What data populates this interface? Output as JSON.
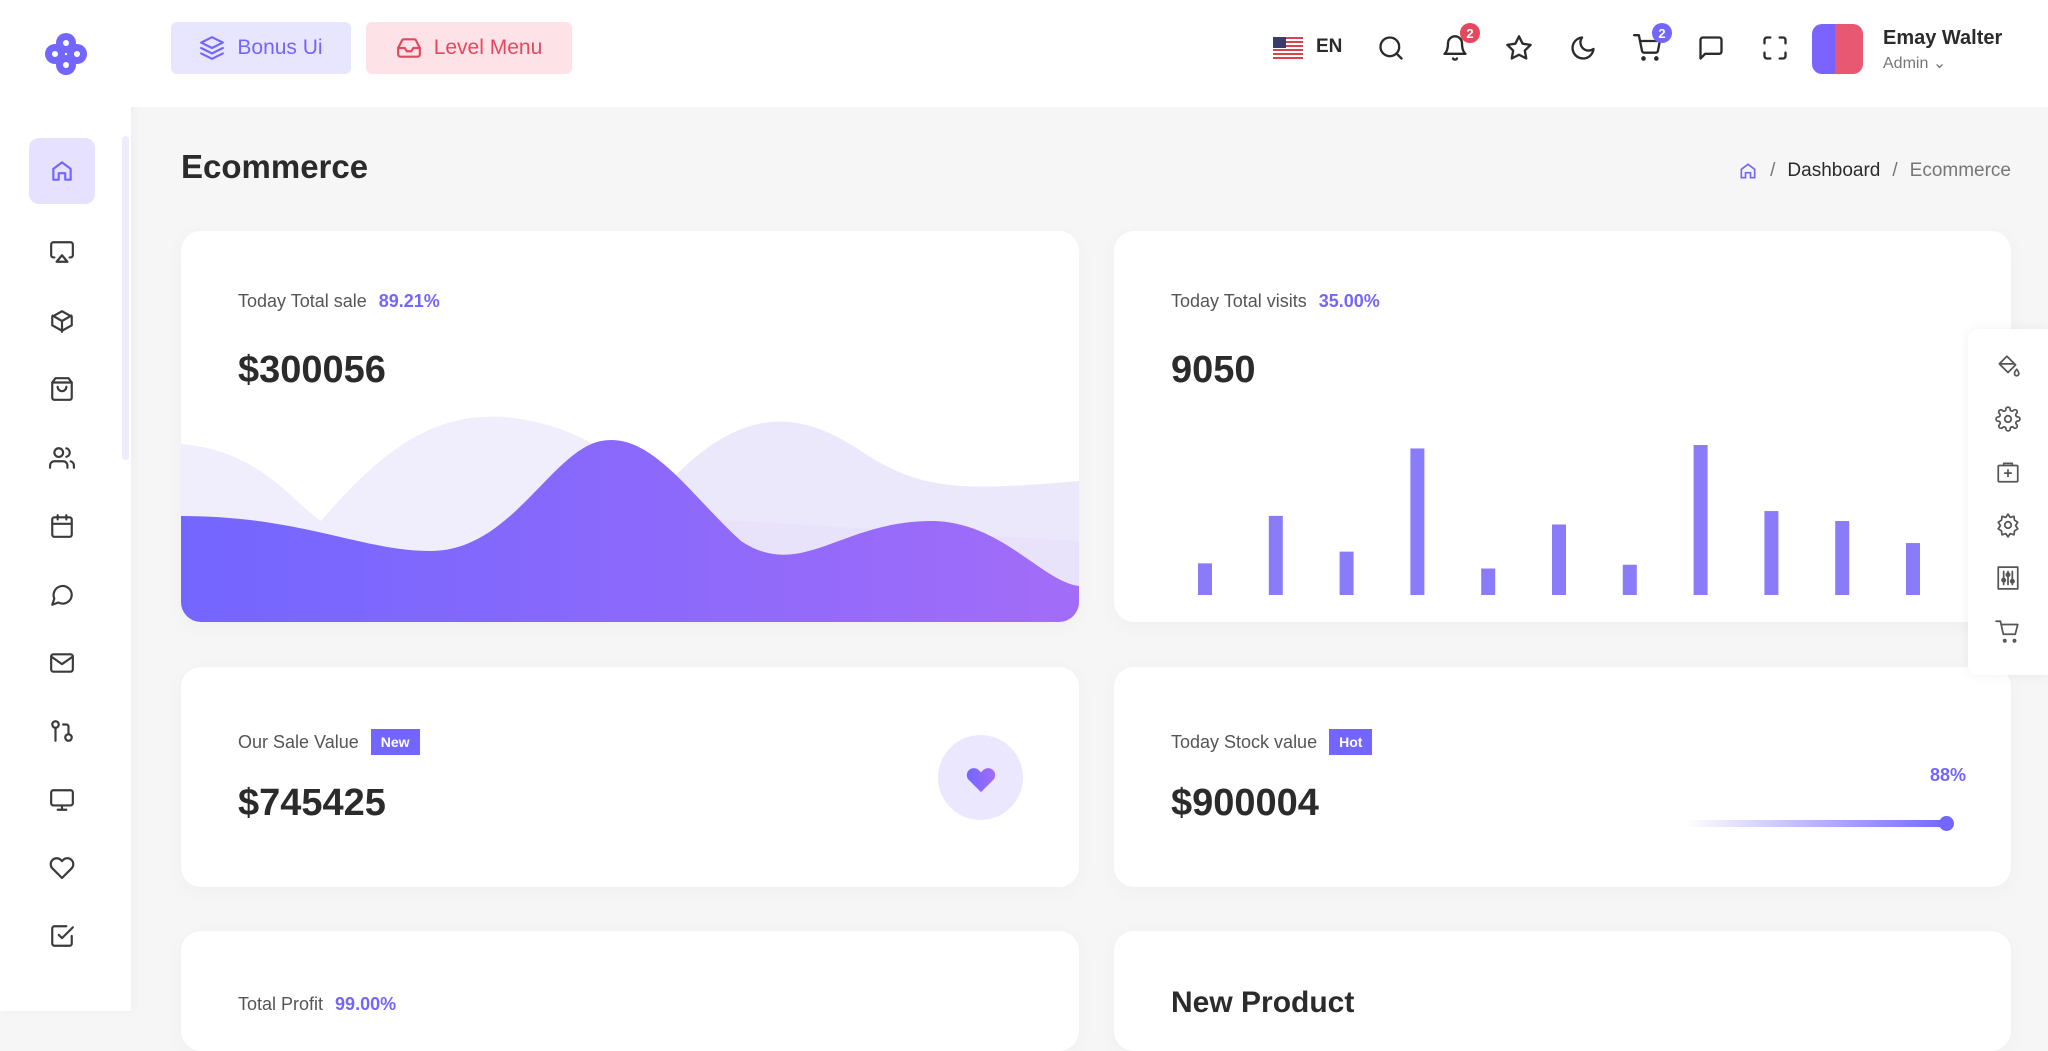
{
  "header": {
    "bonus_label": "Bonus Ui",
    "level_label": "Level Menu",
    "language": "EN",
    "notification_count": "2",
    "cart_count": "2",
    "user": {
      "name": "Emay Walter",
      "role": "Admin"
    }
  },
  "page": {
    "title": "Ecommerce",
    "breadcrumb": [
      "Dashboard",
      "Ecommerce"
    ]
  },
  "colors": {
    "accent": "#7366ff",
    "danger": "#e5475e",
    "secondary": "#a26cf8"
  },
  "cards": {
    "total_sale": {
      "label": "Today Total sale",
      "percent": "89.21%",
      "value": "$300056"
    },
    "total_visits": {
      "label": "Today Total visits",
      "percent": "35.00%",
      "value": "9050"
    },
    "sale_value": {
      "label": "Our Sale Value",
      "badge": "New",
      "value": "$745425",
      "icon": "heart-icon"
    },
    "stock_value": {
      "label": "Today Stock value",
      "badge": "Hot",
      "value": "$900004",
      "progress_label": "88%",
      "progress": 88
    },
    "total_profit": {
      "label": "Total Profit",
      "percent": "99.00%"
    },
    "new_product": {
      "title": "New Product"
    }
  },
  "chart_data": [
    {
      "type": "bar",
      "values": [
        92,
        230,
        126,
        426,
        77,
        205,
        88,
        436,
        244,
        215,
        151
      ]
    },
    {
      "type": "area"
    }
  ],
  "sidebar": {
    "icons": [
      "home-icon",
      "airplay-icon",
      "box-icon",
      "shopping-bag-icon",
      "users-icon",
      "calendar-icon",
      "message-circle-icon",
      "mail-icon",
      "git-pull-request-icon",
      "monitor-icon",
      "heart-icon",
      "check-square-icon"
    ]
  },
  "right_panel": {
    "icons": [
      "paint-bucket-icon",
      "settings-icon",
      "shopping-bag-plus-icon",
      "settings-icon",
      "sliders-icon",
      "shopping-cart-icon"
    ]
  }
}
